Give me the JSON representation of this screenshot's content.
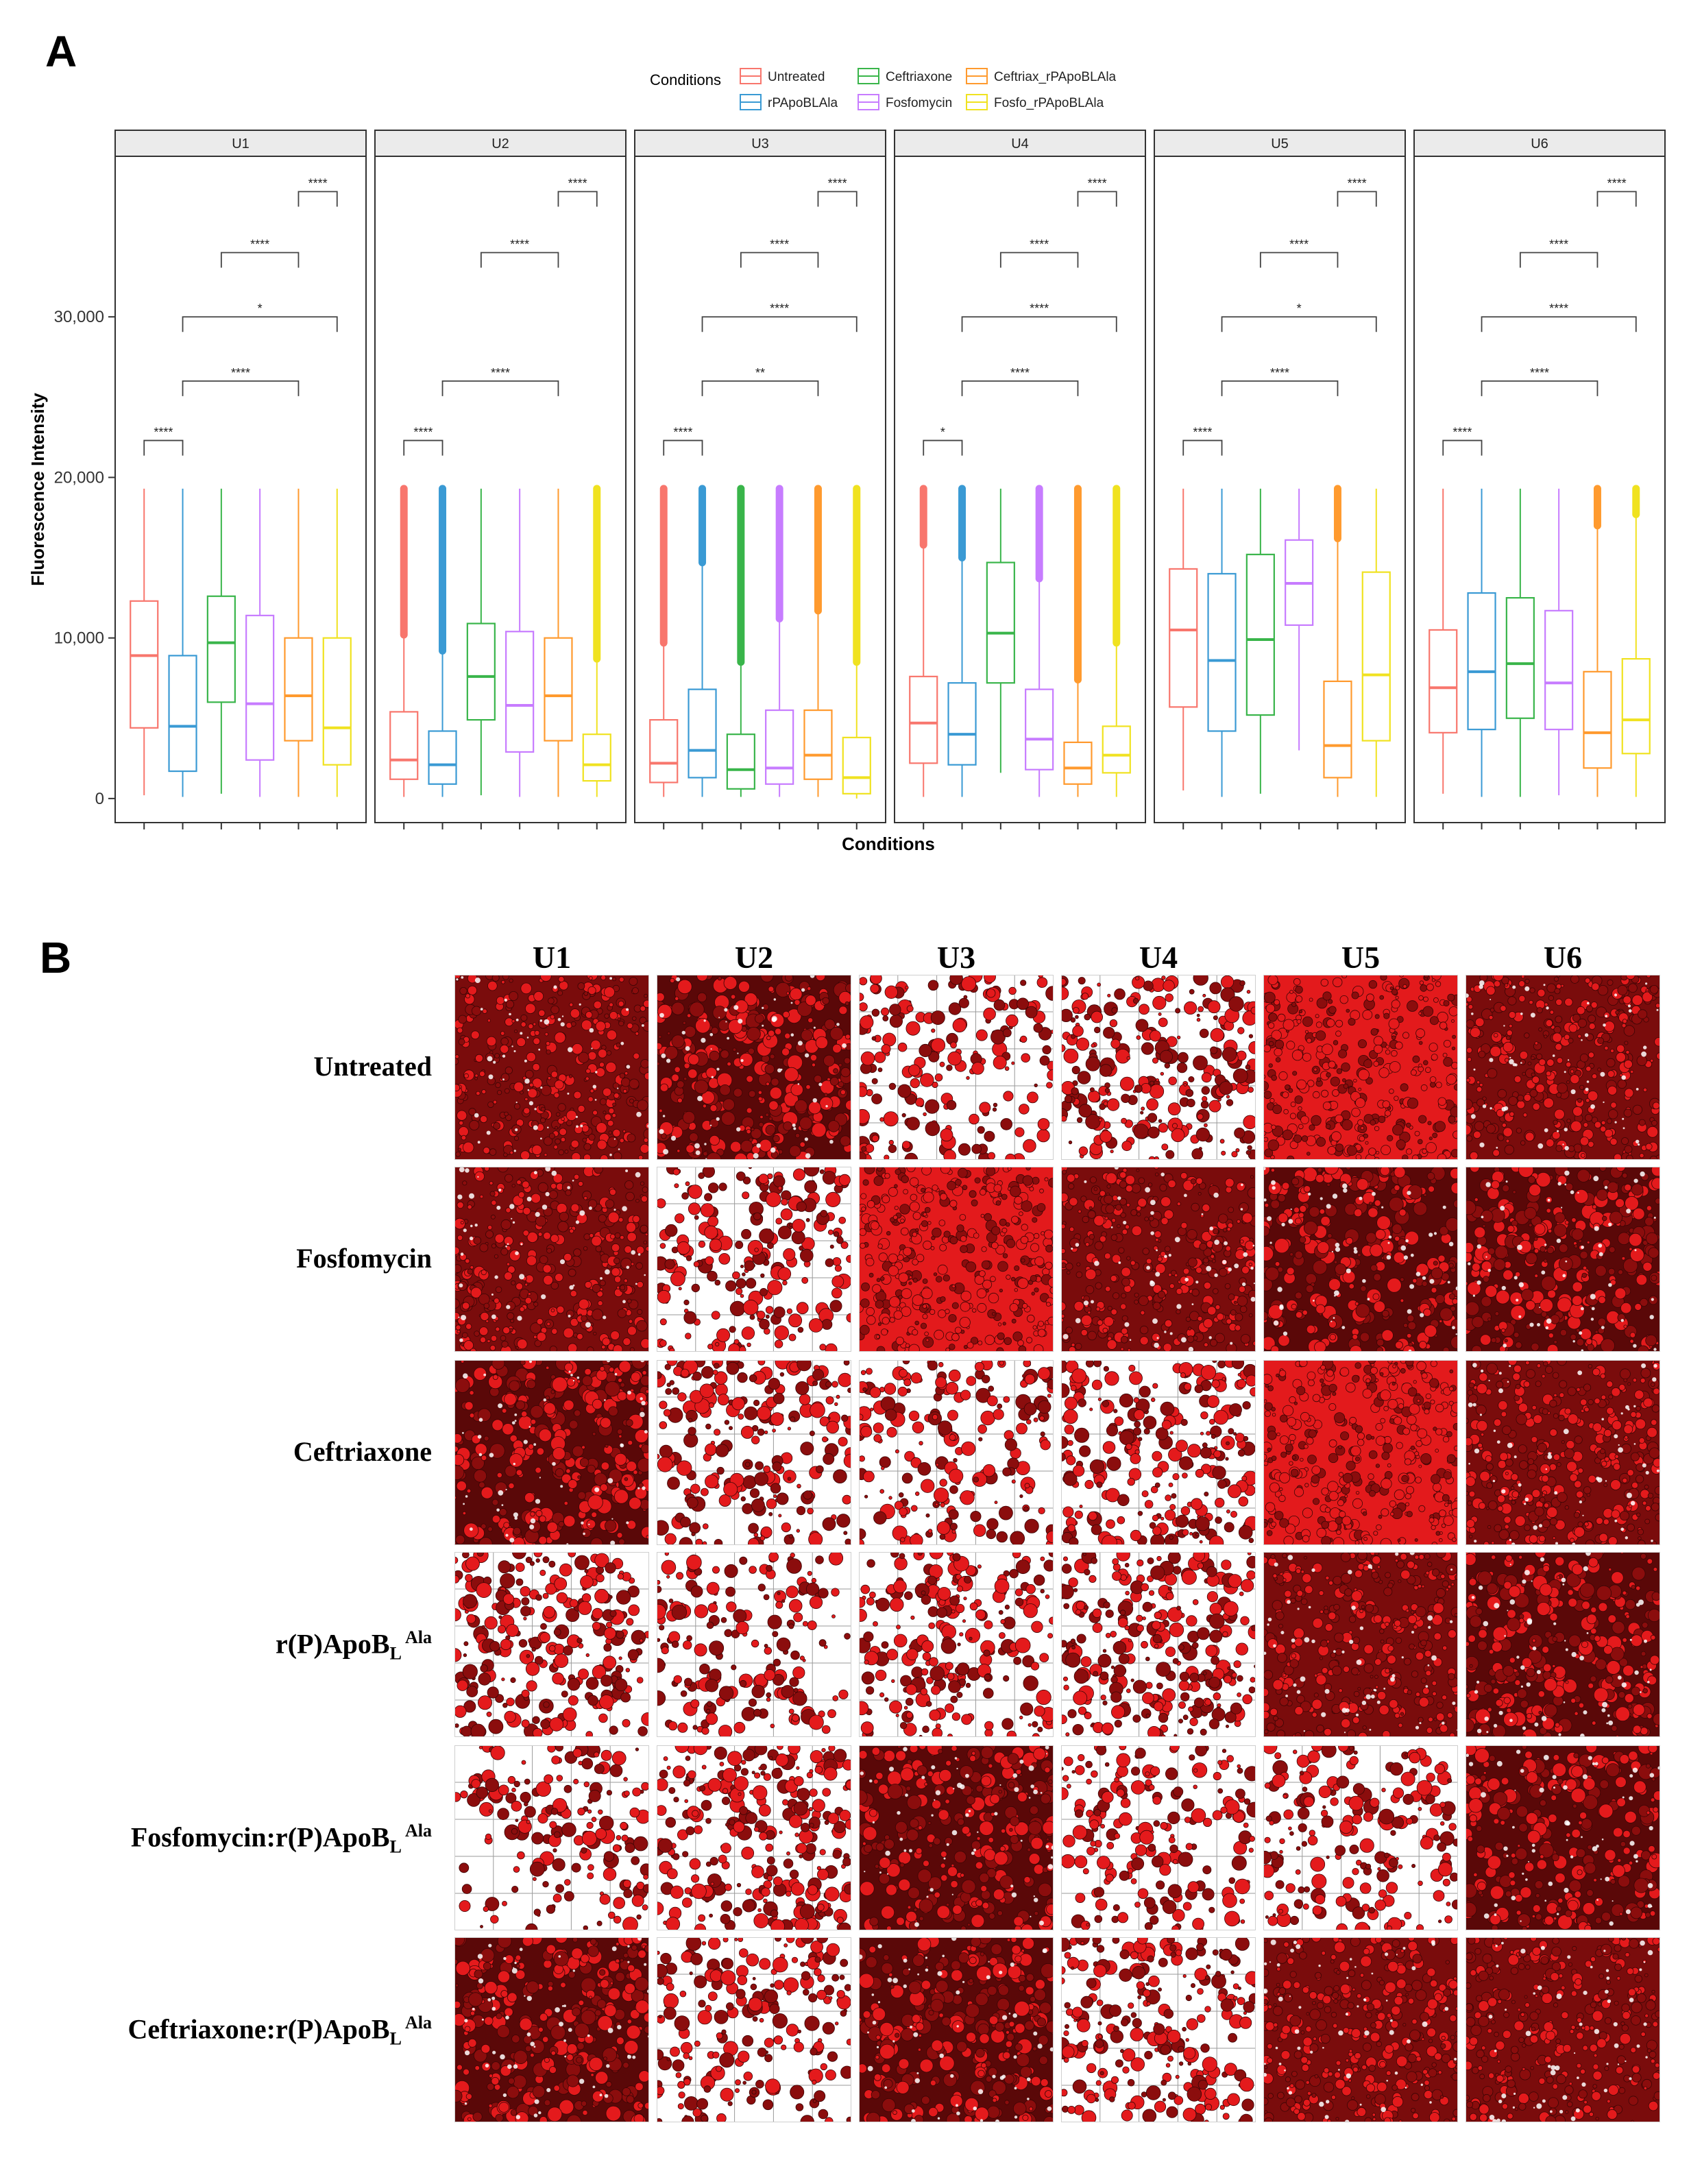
{
  "panel_a_letter": "A",
  "panel_b_letter": "B",
  "chart_data": {
    "type": "box",
    "title": "",
    "xlabel": "Conditions",
    "ylabel": "Fluorescence Intensity",
    "ylim": [
      -1500,
      40000
    ],
    "yticks": [
      0,
      10000,
      20000,
      30000
    ],
    "ytick_labels": [
      "0",
      "10,000",
      "20,000",
      "30,000"
    ],
    "legend": {
      "title": "Conditions",
      "placement": "top",
      "entries": [
        "Untreated",
        "rPApoBLAla",
        "Ceftriaxone",
        "Fosfomycin",
        "Ceftriax_rPApoBLAla",
        "Fosfo_rPApoBLAla"
      ]
    },
    "colors": [
      "#f8766d",
      "#3a9ad4",
      "#39b54a",
      "#c77cff",
      "#ff9a2e",
      "#f0e220"
    ],
    "facets": [
      {
        "name": "U1",
        "boxes": [
          {
            "q1": 4400,
            "med": 8900,
            "q3": 12300,
            "lo": 200,
            "hi": 19300,
            "out": false
          },
          {
            "q1": 1700,
            "med": 4500,
            "q3": 8900,
            "lo": 100,
            "hi": 19300,
            "out": false
          },
          {
            "q1": 6000,
            "med": 9700,
            "q3": 12600,
            "lo": 300,
            "hi": 19300,
            "out": false
          },
          {
            "q1": 2400,
            "med": 5900,
            "q3": 11400,
            "lo": 100,
            "hi": 19300,
            "out": false
          },
          {
            "q1": 3600,
            "med": 6400,
            "q3": 10000,
            "lo": 100,
            "hi": 19300,
            "out": false
          },
          {
            "q1": 2100,
            "med": 4400,
            "q3": 10000,
            "lo": 100,
            "hi": 19300,
            "out": false
          }
        ],
        "brackets": [
          {
            "from": 1,
            "to": 2,
            "y": 22300,
            "label": "****"
          },
          {
            "from": 2,
            "to": 5,
            "y": 26000,
            "label": "****"
          },
          {
            "from": 2,
            "to": 6,
            "y": 30000,
            "label": "*"
          },
          {
            "from": 3,
            "to": 5,
            "y": 34000,
            "label": "****"
          },
          {
            "from": 5,
            "to": 6,
            "y": 37800,
            "label": "****"
          }
        ]
      },
      {
        "name": "U2",
        "boxes": [
          {
            "q1": 1200,
            "med": 2400,
            "q3": 5400,
            "lo": 100,
            "hi": 10000,
            "out": true
          },
          {
            "q1": 900,
            "med": 2100,
            "q3": 4200,
            "lo": 100,
            "hi": 9000,
            "out": true
          },
          {
            "q1": 4900,
            "med": 7600,
            "q3": 10900,
            "lo": 200,
            "hi": 19300,
            "out": false
          },
          {
            "q1": 2900,
            "med": 5800,
            "q3": 10400,
            "lo": 100,
            "hi": 19300,
            "out": false
          },
          {
            "q1": 3600,
            "med": 6400,
            "q3": 10000,
            "lo": 100,
            "hi": 19300,
            "out": false
          },
          {
            "q1": 1100,
            "med": 2100,
            "q3": 4000,
            "lo": 100,
            "hi": 8500,
            "out": true
          }
        ],
        "brackets": [
          {
            "from": 1,
            "to": 2,
            "y": 22300,
            "label": "****"
          },
          {
            "from": 2,
            "to": 5,
            "y": 26000,
            "label": "****"
          },
          {
            "from": 3,
            "to": 5,
            "y": 34000,
            "label": "****"
          },
          {
            "from": 5,
            "to": 6,
            "y": 37800,
            "label": "****"
          }
        ]
      },
      {
        "name": "U3",
        "boxes": [
          {
            "q1": 1000,
            "med": 2200,
            "q3": 4900,
            "lo": 100,
            "hi": 9500,
            "out": true
          },
          {
            "q1": 1300,
            "med": 3000,
            "q3": 6800,
            "lo": 100,
            "hi": 14500,
            "out": true
          },
          {
            "q1": 600,
            "med": 1800,
            "q3": 4000,
            "lo": 100,
            "hi": 8300,
            "out": true
          },
          {
            "q1": 900,
            "med": 1900,
            "q3": 5500,
            "lo": 100,
            "hi": 11000,
            "out": true
          },
          {
            "q1": 1200,
            "med": 2700,
            "q3": 5500,
            "lo": 100,
            "hi": 11500,
            "out": true
          },
          {
            "q1": 300,
            "med": 1300,
            "q3": 3800,
            "lo": 0,
            "hi": 8300,
            "out": true
          }
        ],
        "brackets": [
          {
            "from": 1,
            "to": 2,
            "y": 22300,
            "label": "****"
          },
          {
            "from": 2,
            "to": 5,
            "y": 26000,
            "label": "**"
          },
          {
            "from": 2,
            "to": 6,
            "y": 30000,
            "label": "****"
          },
          {
            "from": 3,
            "to": 5,
            "y": 34000,
            "label": "****"
          },
          {
            "from": 5,
            "to": 6,
            "y": 37800,
            "label": "****"
          }
        ]
      },
      {
        "name": "U4",
        "boxes": [
          {
            "q1": 2200,
            "med": 4700,
            "q3": 7600,
            "lo": 100,
            "hi": 15600,
            "out": true
          },
          {
            "q1": 2100,
            "med": 4000,
            "q3": 7200,
            "lo": 100,
            "hi": 14800,
            "out": true
          },
          {
            "q1": 7200,
            "med": 10300,
            "q3": 14700,
            "lo": 1600,
            "hi": 19300,
            "out": false
          },
          {
            "q1": 1800,
            "med": 3700,
            "q3": 6800,
            "lo": 100,
            "hi": 13500,
            "out": true
          },
          {
            "q1": 900,
            "med": 1900,
            "q3": 3500,
            "lo": 100,
            "hi": 7200,
            "out": true
          },
          {
            "q1": 1600,
            "med": 2700,
            "q3": 4500,
            "lo": 100,
            "hi": 9500,
            "out": true
          }
        ],
        "brackets": [
          {
            "from": 1,
            "to": 2,
            "y": 22300,
            "label": "*"
          },
          {
            "from": 2,
            "to": 5,
            "y": 26000,
            "label": "****"
          },
          {
            "from": 2,
            "to": 6,
            "y": 30000,
            "label": "****"
          },
          {
            "from": 3,
            "to": 5,
            "y": 34000,
            "label": "****"
          },
          {
            "from": 5,
            "to": 6,
            "y": 37800,
            "label": "****"
          }
        ]
      },
      {
        "name": "U5",
        "boxes": [
          {
            "q1": 5700,
            "med": 10500,
            "q3": 14300,
            "lo": 500,
            "hi": 19300,
            "out": false
          },
          {
            "q1": 4200,
            "med": 8600,
            "q3": 14000,
            "lo": 100,
            "hi": 19300,
            "out": false
          },
          {
            "q1": 5200,
            "med": 9900,
            "q3": 15200,
            "lo": 300,
            "hi": 19300,
            "out": false
          },
          {
            "q1": 10800,
            "med": 13400,
            "q3": 16100,
            "lo": 3000,
            "hi": 19300,
            "out": true
          },
          {
            "q1": 1300,
            "med": 3300,
            "q3": 7300,
            "lo": 100,
            "hi": 16000,
            "out": true
          },
          {
            "q1": 3600,
            "med": 7700,
            "q3": 14100,
            "lo": 100,
            "hi": 19300,
            "out": false
          }
        ],
        "brackets": [
          {
            "from": 1,
            "to": 2,
            "y": 22300,
            "label": "****"
          },
          {
            "from": 2,
            "to": 5,
            "y": 26000,
            "label": "****"
          },
          {
            "from": 2,
            "to": 6,
            "y": 30000,
            "label": "*"
          },
          {
            "from": 3,
            "to": 5,
            "y": 34000,
            "label": "****"
          },
          {
            "from": 5,
            "to": 6,
            "y": 37800,
            "label": "****"
          }
        ]
      },
      {
        "name": "U6",
        "boxes": [
          {
            "q1": 4100,
            "med": 6900,
            "q3": 10500,
            "lo": 300,
            "hi": 19300,
            "out": false
          },
          {
            "q1": 4300,
            "med": 7900,
            "q3": 12800,
            "lo": 100,
            "hi": 19300,
            "out": false
          },
          {
            "q1": 5000,
            "med": 8400,
            "q3": 12500,
            "lo": 100,
            "hi": 19300,
            "out": false
          },
          {
            "q1": 4300,
            "med": 7200,
            "q3": 11700,
            "lo": 200,
            "hi": 19300,
            "out": false
          },
          {
            "q1": 1900,
            "med": 4100,
            "q3": 7900,
            "lo": 100,
            "hi": 16800,
            "out": true
          },
          {
            "q1": 2800,
            "med": 4900,
            "q3": 8700,
            "lo": 100,
            "hi": 17500,
            "out": true
          }
        ],
        "brackets": [
          {
            "from": 1,
            "to": 2,
            "y": 22300,
            "label": "****"
          },
          {
            "from": 2,
            "to": 5,
            "y": 26000,
            "label": "****"
          },
          {
            "from": 2,
            "to": 6,
            "y": 30000,
            "label": "****"
          },
          {
            "from": 3,
            "to": 5,
            "y": 34000,
            "label": "****"
          },
          {
            "from": 5,
            "to": 6,
            "y": 37800,
            "label": "****"
          }
        ]
      }
    ]
  },
  "micrographs": {
    "columns": [
      "U1",
      "U2",
      "U3",
      "U4",
      "U5",
      "U6"
    ],
    "rows": [
      {
        "main": "Untreated",
        "sub": "",
        "sup": "",
        "density": [
          0.9,
          0.8,
          0.3,
          0.55,
          0.97,
          0.95
        ]
      },
      {
        "main": "Fosfomycin",
        "sub": "",
        "sup": "",
        "density": [
          0.9,
          0.4,
          0.98,
          0.88,
          0.72,
          0.78
        ]
      },
      {
        "main": "Ceftriaxone",
        "sub": "",
        "sup": "",
        "density": [
          0.75,
          0.42,
          0.3,
          0.5,
          0.99,
          0.9
        ]
      },
      {
        "main": "r(P)ApoB",
        "sub": "L",
        "sup": "Ala",
        "density": [
          0.55,
          0.25,
          0.45,
          0.6,
          0.82,
          0.7
        ]
      },
      {
        "main": "Fosfomycin:r(P)ApoB",
        "sub": "L",
        "sup": "Ala",
        "density": [
          0.22,
          0.6,
          0.62,
          0.28,
          0.35,
          0.62
        ]
      },
      {
        "main": "Ceftriaxone:r(P)ApoB",
        "sub": "L",
        "sup": "Ala",
        "density": [
          0.72,
          0.35,
          0.62,
          0.5,
          0.88,
          0.82
        ]
      }
    ]
  }
}
